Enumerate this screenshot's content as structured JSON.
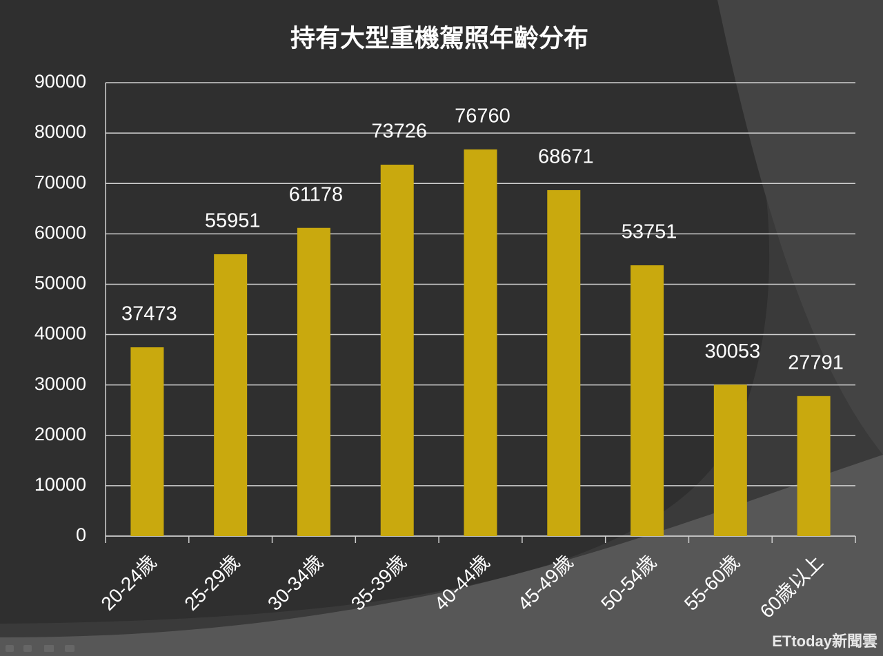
{
  "chart_data": {
    "type": "bar",
    "title": "持有大型重機駕照年齡分布",
    "categories": [
      "20-24歲",
      "25-29歲",
      "30-34歲",
      "35-39歲",
      "40-44歲",
      "45-49歲",
      "50-54歲",
      "55-60歲",
      "60歲以上"
    ],
    "values": [
      37473,
      55951,
      61178,
      73726,
      76760,
      68671,
      53751,
      30053,
      27791
    ],
    "color": "#c9a90e",
    "ylim": [
      0,
      90000
    ],
    "yticks": [
      0,
      10000,
      20000,
      30000,
      40000,
      50000,
      60000,
      70000,
      80000,
      90000
    ],
    "grid": true
  },
  "watermark": "ETtoday新聞雲"
}
